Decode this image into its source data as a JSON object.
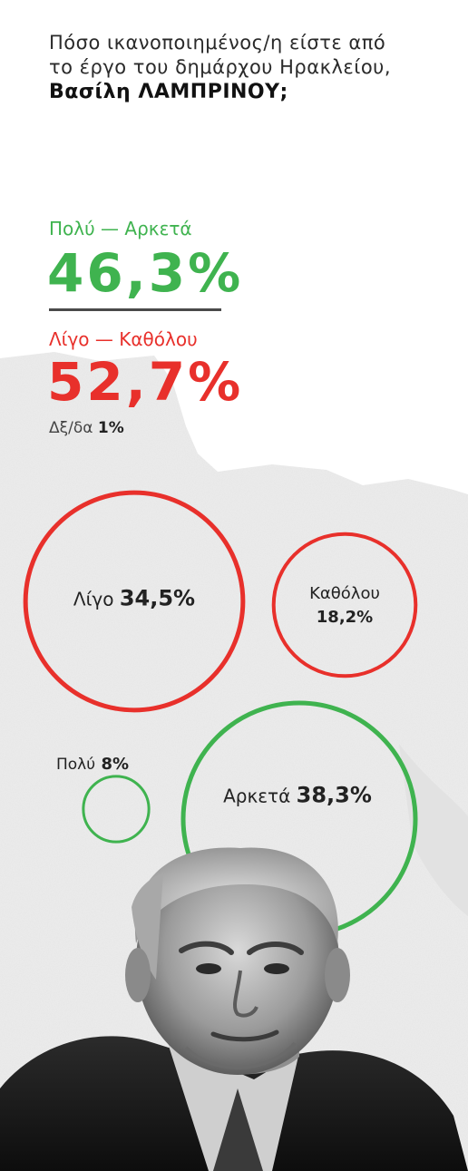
{
  "question": {
    "line1": "Πόσο ικανοποιημένος/η είστε από το έργο του δημάρχου Ηρακλείου,",
    "line2": "Βασίλη ΛΑΜΠΡΙΝΟΥ;"
  },
  "summary": {
    "positive_label": "Πολύ — Αρκετά",
    "positive_value": "46,3%",
    "negative_label": "Λίγο — Καθόλου",
    "negative_value": "52,7%",
    "dk_label": "Δξ/δα",
    "dk_value": "1%"
  },
  "colors": {
    "positive": "#3fb34f",
    "negative": "#e8302b",
    "rule": "#4a4a4a"
  },
  "chart_data": {
    "type": "bubble",
    "categories": [
      "Λίγο",
      "Καθόλου",
      "Πολύ",
      "Αρκετά"
    ],
    "values": [
      34.5,
      18.2,
      8,
      38.3
    ],
    "value_labels": [
      "34,5%",
      "18,2%",
      "8%",
      "38,3%"
    ],
    "groups": [
      "negative",
      "negative",
      "positive",
      "positive"
    ]
  }
}
